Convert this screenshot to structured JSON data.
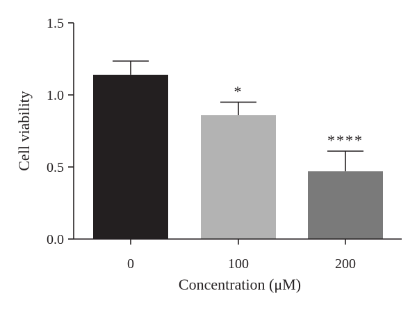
{
  "chart_data": {
    "type": "bar",
    "categories": [
      "0",
      "100",
      "200"
    ],
    "values": [
      1.14,
      0.86,
      0.47
    ],
    "errors": [
      0.095,
      0.09,
      0.14
    ],
    "significance": [
      "",
      "*",
      "****"
    ],
    "bar_colors": [
      "#231f20",
      "#b3b3b3",
      "#7a7a7a"
    ],
    "xlabel": "Concentration (μM)",
    "ylabel": "Cell viability",
    "ylim": [
      0,
      1.5
    ],
    "yticks": [
      0.0,
      0.5,
      1.0,
      1.5
    ],
    "ytick_labels": [
      "0.0",
      "0.5",
      "1.0",
      "1.5"
    ],
    "grid": false,
    "legend": "none"
  }
}
